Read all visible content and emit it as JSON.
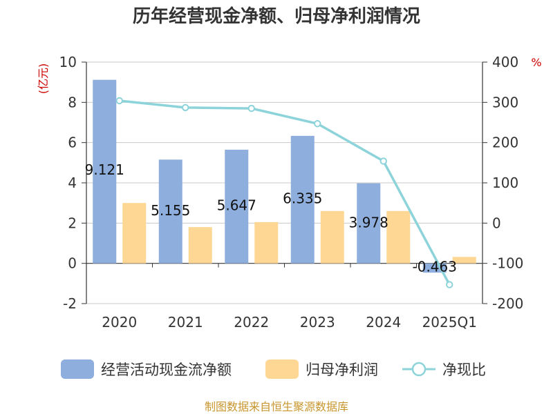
{
  "chart_data": {
    "type": "bar",
    "title": "历年经营现金净额、归母净利润情况",
    "categories": [
      "2020",
      "2021",
      "2022",
      "2023",
      "2024",
      "2025Q1"
    ],
    "series": [
      {
        "name": "经营活动现金流净额",
        "kind": "bar",
        "axis": "left",
        "color": "#8eaedd",
        "values": [
          9.121,
          5.155,
          5.647,
          6.335,
          3.978,
          -0.463
        ],
        "labels": [
          "9.121",
          "5.155",
          "5.647",
          "6.335",
          "3.978",
          "-0.463"
        ]
      },
      {
        "name": "归母净利润",
        "kind": "bar",
        "axis": "left",
        "color": "#ffd795",
        "values": [
          3.0,
          1.8,
          2.05,
          2.6,
          2.6,
          0.32
        ]
      },
      {
        "name": "净现比",
        "kind": "line",
        "axis": "right",
        "color": "#8dd3da",
        "values": [
          304,
          287,
          285,
          247,
          154,
          -153
        ]
      }
    ],
    "y_left": {
      "unit": "(亿元)",
      "range": [
        -2,
        10
      ],
      "ticks": [
        "-2",
        "0",
        "2",
        "4",
        "6",
        "8",
        "10"
      ]
    },
    "y_right": {
      "unit": "%",
      "range": [
        -200,
        400
      ],
      "ticks": [
        "-200",
        "-100",
        "0",
        "100",
        "200",
        "300",
        "400"
      ]
    },
    "grid": true,
    "legend_position": "bottom",
    "source": "制图数据来自恒生聚源数据库"
  }
}
